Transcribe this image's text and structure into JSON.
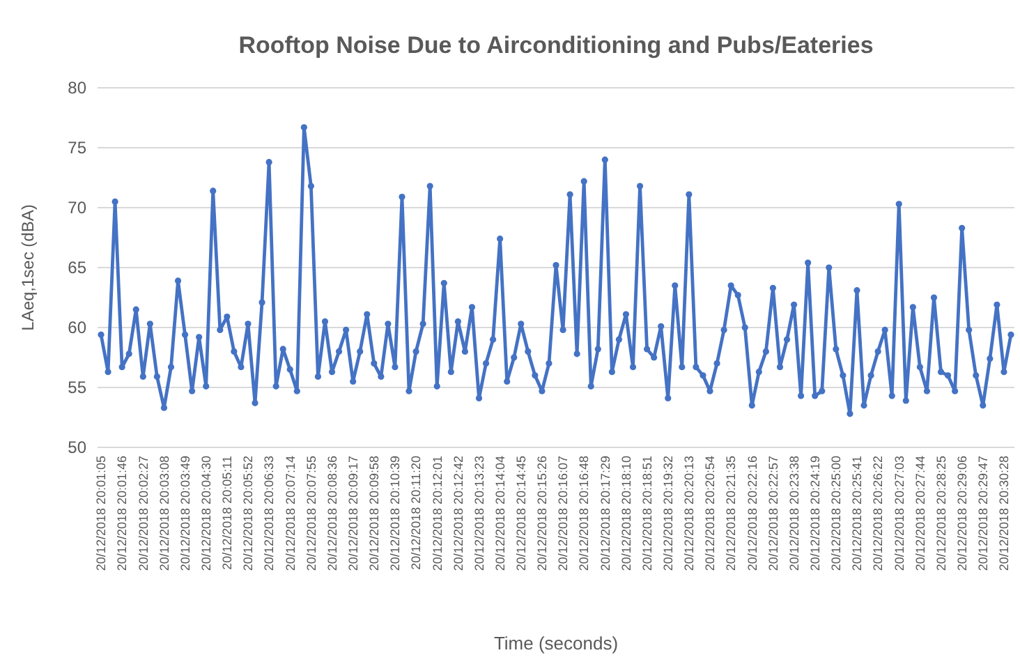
{
  "chart_data": {
    "type": "line",
    "title": "Rooftop Noise Due to Airconditioning and Pubs/Eateries",
    "xlabel": "Time (seconds)",
    "ylabel": "LAeq,1sec (dBA)",
    "categories": [
      "20/12/2018 20:01:05",
      null,
      null,
      "20/12/2018 20:01:46",
      null,
      null,
      "20/12/2018 20:02:27",
      null,
      null,
      "20/12/2018 20:03:08",
      null,
      null,
      "20/12/2018 20:03:49",
      null,
      null,
      "20/12/2018 20:04:30",
      null,
      null,
      "20/12/2018 20:05:11",
      null,
      null,
      "20/12/2018 20:05:52",
      null,
      null,
      "20/12/2018 20:06:33",
      null,
      null,
      "20/12/2018 20:07:14",
      null,
      null,
      "20/12/2018 20:07:55",
      null,
      null,
      "20/12/2018 20:08:36",
      null,
      null,
      "20/12/2018 20:09:17",
      null,
      null,
      "20/12/2018 20:09:58",
      null,
      null,
      "20/12/2018 20:10:39",
      null,
      null,
      "20/12/2018 20:11:20",
      null,
      null,
      "20/12/2018 20:12:01",
      null,
      null,
      "20/12/2018 20:12:42",
      null,
      null,
      "20/12/2018 20:13:23",
      null,
      null,
      "20/12/2018 20:14:04",
      null,
      null,
      "20/12/2018 20:14:45",
      null,
      null,
      "20/12/2018 20:15:26",
      null,
      null,
      "20/12/2018 20:16:07",
      null,
      null,
      "20/12/2018 20:16:48",
      null,
      null,
      "20/12/2018 20:17:29",
      null,
      null,
      "20/12/2018 20:18:10",
      null,
      null,
      "20/12/2018 20:18:51",
      null,
      null,
      "20/12/2018 20:19:32",
      null,
      null,
      "20/12/2018 20:20:13",
      null,
      null,
      "20/12/2018 20:20:54",
      null,
      null,
      "20/12/2018 20:21:35",
      null,
      null,
      "20/12/2018 20:22:16",
      null,
      null,
      "20/12/2018 20:22:57",
      null,
      null,
      "20/12/2018 20:23:38",
      null,
      null,
      "20/12/2018 20:24:19",
      null,
      null,
      "20/12/2018 20:25:00",
      null,
      null,
      "20/12/2018 20:25:41",
      null,
      null,
      "20/12/2018 20:26:22",
      null,
      null,
      "20/12/2018 20:27:03",
      null,
      null,
      "20/12/2018 20:27:44",
      null,
      null,
      "20/12/2018 20:28:25",
      null,
      null,
      "20/12/2018 20:29:06",
      null,
      null,
      "20/12/2018 20:29:47",
      null,
      null,
      "20/12/2018 20:30:28",
      null
    ],
    "series": [
      {
        "color": "#4472c4",
        "values": [
          59.4,
          56.3,
          70.5,
          56.7,
          57.8,
          61.5,
          55.9,
          60.3,
          55.9,
          53.3,
          56.7,
          63.9,
          59.4,
          54.7,
          59.2,
          55.1,
          71.4,
          59.8,
          60.9,
          58,
          56.7,
          60.3,
          53.7,
          62.1,
          73.8,
          55.1,
          58.2,
          56.5,
          54.7,
          76.7,
          71.8,
          55.9,
          60.5,
          56.3,
          58,
          59.8,
          55.5,
          58,
          61.1,
          57,
          55.9,
          60.3,
          56.7,
          70.9,
          54.7,
          58,
          60.3,
          71.8,
          55.1,
          63.7,
          56.3,
          60.5,
          58,
          61.7,
          54.1,
          57,
          59,
          67.4,
          55.5,
          57.5,
          60.3,
          58,
          56,
          54.7,
          57,
          65.2,
          59.8,
          71.1,
          57.8,
          72.2,
          55.1,
          58.2,
          74,
          56.3,
          59,
          61.1,
          56.7,
          71.8,
          58.2,
          57.5,
          60.1,
          54.1,
          63.5,
          56.7,
          71.1,
          56.7,
          56,
          54.7,
          57,
          59.8,
          63.5,
          62.7,
          60,
          53.5,
          56.3,
          58,
          63.3,
          56.7,
          59,
          61.9,
          54.3,
          65.4,
          54.3,
          54.7,
          65,
          58.2,
          56,
          52.8,
          63.1,
          53.5,
          56,
          58,
          59.8,
          54.3,
          70.3,
          53.9,
          61.7,
          56.7,
          54.7,
          62.5,
          56.3,
          56,
          54.7,
          68.3,
          59.8,
          56,
          53.5,
          57.4,
          61.9,
          56.3,
          59.4
        ]
      }
    ],
    "ylim": [
      50,
      80
    ],
    "yticks": [
      50,
      55,
      60,
      65,
      70,
      75,
      80
    ],
    "grid": "y",
    "marker": "circle",
    "line_style": "solid"
  }
}
